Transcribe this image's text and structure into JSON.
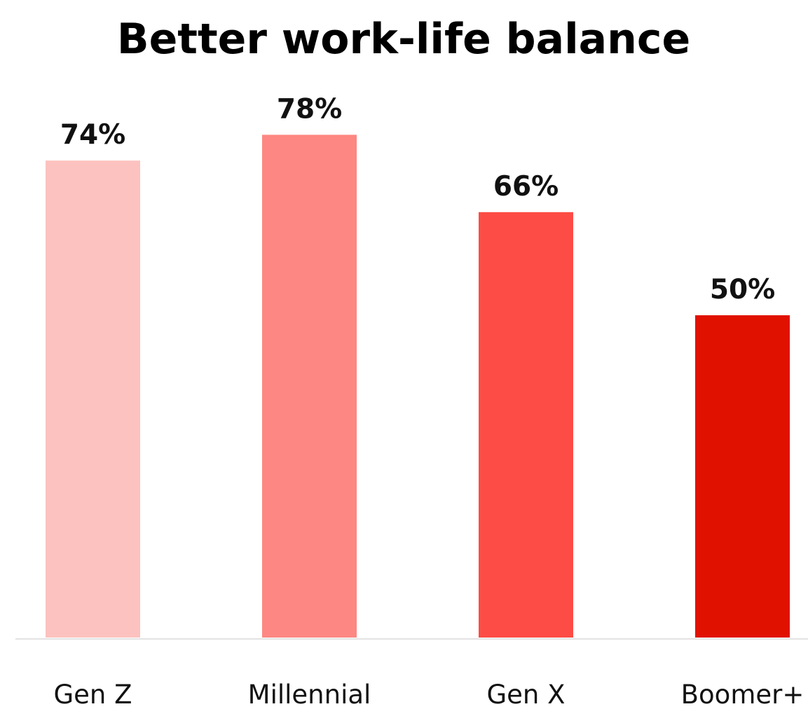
{
  "chart_data": {
    "type": "bar",
    "title": "Better work-life balance",
    "xlabel": "",
    "ylabel": "",
    "categories": [
      "Gen Z",
      "Millennial",
      "Gen X",
      "Boomer+"
    ],
    "series": [
      {
        "values": [
          74,
          78,
          66,
          50
        ],
        "value_labels": [
          "74%",
          "78%",
          "66%",
          "50%"
        ],
        "colors": [
          "#fcc2bf",
          "#fd8782",
          "#fd4c45",
          "#e11100"
        ]
      }
    ],
    "ylim": [
      0,
      100
    ],
    "grid": false,
    "legend": "none",
    "baseline_color": "#e3e3e3"
  }
}
